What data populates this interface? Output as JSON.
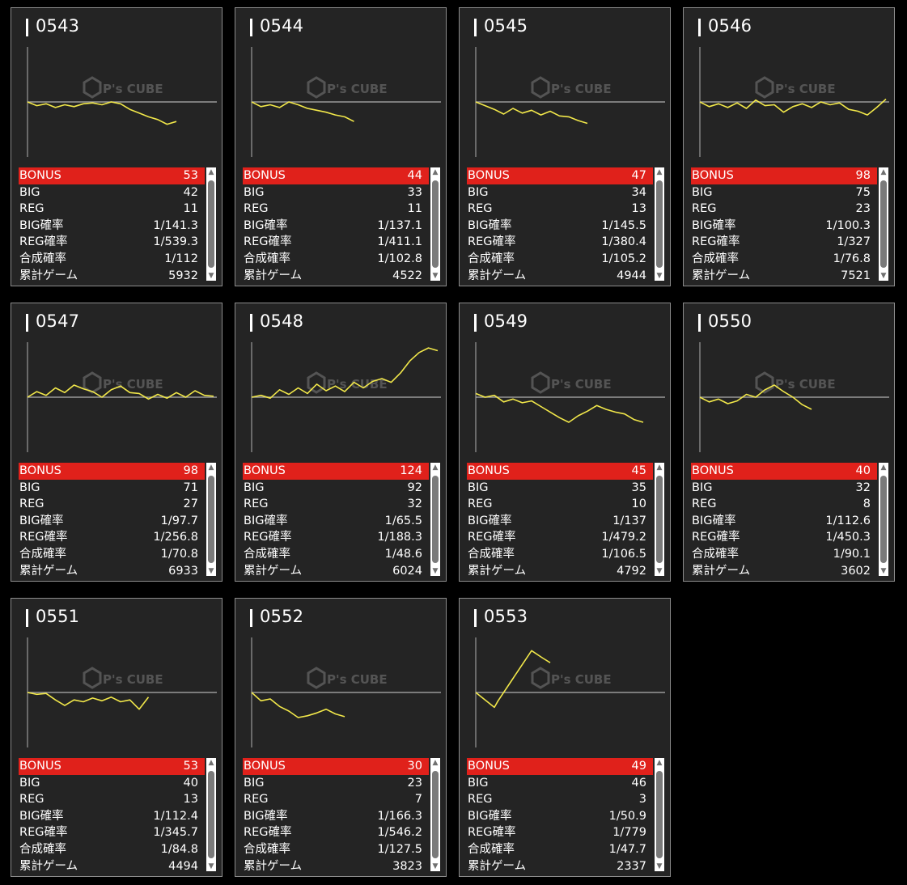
{
  "labels": {
    "bonus": "BONUS",
    "big": "BIG",
    "reg": "REG",
    "big_rate": "BIG確率",
    "reg_rate": "REG確率",
    "combined_rate": "合成確率",
    "total_games": "累計ゲーム"
  },
  "watermark": {
    "brand": "P's CUBE"
  },
  "colors": {
    "background": "#000000",
    "card": "#242424",
    "card_border": "#8c8c8c",
    "bonus_row": "#e0211b",
    "graph_line": "#f2e84a",
    "zero_line": "#9a9a9a",
    "axis": "#b0b0b0"
  },
  "scroll_icons": {
    "up": "triangle-up-icon",
    "down": "triangle-down-icon"
  },
  "machines": [
    {
      "no": "0543",
      "bonus": "53",
      "big": "42",
      "reg": "11",
      "big_rate": "1/141.3",
      "reg_rate": "1/539.3",
      "combined_rate": "1/112",
      "total_games": "5932",
      "chart_data": {
        "type": "line",
        "x": [
          0,
          5,
          10,
          15,
          20,
          25,
          30,
          35,
          40,
          45,
          50,
          55,
          60,
          65,
          70,
          75,
          80
        ],
        "y": [
          0,
          -4,
          -2,
          -6,
          -3,
          -5,
          -2,
          -1,
          -3,
          0,
          -2,
          -8,
          -12,
          -16,
          -19,
          -24,
          -21
        ]
      }
    },
    {
      "no": "0544",
      "bonus": "44",
      "big": "33",
      "reg": "11",
      "big_rate": "1/137.1",
      "reg_rate": "1/411.1",
      "combined_rate": "1/102.8",
      "total_games": "4522",
      "chart_data": {
        "type": "line",
        "x": [
          0,
          5,
          10,
          15,
          20,
          25,
          30,
          35,
          40,
          45,
          50,
          55
        ],
        "y": [
          0,
          -5,
          -3,
          -6,
          0,
          -3,
          -7,
          -9,
          -11,
          -14,
          -16,
          -21
        ]
      }
    },
    {
      "no": "0545",
      "bonus": "47",
      "big": "34",
      "reg": "13",
      "big_rate": "1/145.5",
      "reg_rate": "1/380.4",
      "combined_rate": "1/105.2",
      "total_games": "4944",
      "chart_data": {
        "type": "line",
        "x": [
          0,
          5,
          10,
          15,
          20,
          25,
          30,
          35,
          40,
          45,
          50,
          55,
          60
        ],
        "y": [
          0,
          -4,
          -8,
          -13,
          -7,
          -12,
          -9,
          -14,
          -10,
          -15,
          -16,
          -20,
          -23
        ]
      }
    },
    {
      "no": "0546",
      "bonus": "98",
      "big": "75",
      "reg": "23",
      "big_rate": "1/100.3",
      "reg_rate": "1/327",
      "combined_rate": "1/76.8",
      "total_games": "7521",
      "chart_data": {
        "type": "line",
        "x": [
          0,
          5,
          10,
          15,
          20,
          25,
          30,
          35,
          40,
          45,
          50,
          55,
          60,
          65,
          70,
          75,
          80,
          85,
          90,
          95,
          100
        ],
        "y": [
          0,
          -5,
          -2,
          -6,
          -1,
          -7,
          2,
          -4,
          -3,
          -11,
          -5,
          -2,
          -6,
          0,
          -3,
          -1,
          -8,
          -10,
          -14,
          -6,
          3
        ]
      }
    },
    {
      "no": "0547",
      "bonus": "98",
      "big": "71",
      "reg": "27",
      "big_rate": "1/97.7",
      "reg_rate": "1/256.8",
      "combined_rate": "1/70.8",
      "total_games": "6933",
      "chart_data": {
        "type": "line",
        "x": [
          0,
          5,
          10,
          15,
          20,
          25,
          30,
          35,
          40,
          45,
          50,
          55,
          60,
          65,
          70,
          75,
          80,
          85,
          90,
          95,
          100
        ],
        "y": [
          0,
          6,
          2,
          10,
          5,
          13,
          9,
          6,
          0,
          8,
          12,
          5,
          4,
          -2,
          3,
          -1,
          5,
          0,
          7,
          2,
          1
        ]
      }
    },
    {
      "no": "0548",
      "bonus": "124",
      "big": "92",
      "reg": "32",
      "big_rate": "1/65.5",
      "reg_rate": "1/188.3",
      "combined_rate": "1/48.6",
      "total_games": "6024",
      "chart_data": {
        "type": "line",
        "x": [
          0,
          5,
          10,
          15,
          20,
          25,
          30,
          35,
          40,
          45,
          50,
          55,
          60,
          65,
          70,
          75,
          80,
          85,
          90,
          95,
          100
        ],
        "y": [
          0,
          2,
          -1,
          8,
          3,
          10,
          4,
          14,
          7,
          12,
          6,
          16,
          10,
          17,
          20,
          16,
          26,
          39,
          48,
          53,
          50
        ]
      }
    },
    {
      "no": "0549",
      "bonus": "45",
      "big": "35",
      "reg": "10",
      "big_rate": "1/137",
      "reg_rate": "1/479.2",
      "combined_rate": "1/106.5",
      "total_games": "4792",
      "chart_data": {
        "type": "line",
        "x": [
          0,
          5,
          10,
          15,
          20,
          25,
          30,
          35,
          40,
          45,
          50,
          55,
          60,
          65,
          70,
          75,
          80,
          85,
          90
        ],
        "y": [
          4,
          0,
          2,
          -5,
          -2,
          -6,
          -4,
          -10,
          -16,
          -22,
          -27,
          -20,
          -15,
          -9,
          -13,
          -16,
          -18,
          -24,
          -27
        ]
      }
    },
    {
      "no": "0550",
      "bonus": "40",
      "big": "32",
      "reg": "8",
      "big_rate": "1/112.6",
      "reg_rate": "1/450.3",
      "combined_rate": "1/90.1",
      "total_games": "3602",
      "chart_data": {
        "type": "line",
        "x": [
          0,
          5,
          10,
          15,
          20,
          25,
          30,
          35,
          40,
          45,
          50,
          55,
          60
        ],
        "y": [
          0,
          -5,
          -2,
          -7,
          -4,
          3,
          0,
          8,
          13,
          6,
          0,
          -8,
          -13
        ]
      }
    },
    {
      "no": "0551",
      "bonus": "53",
      "big": "40",
      "reg": "13",
      "big_rate": "1/112.4",
      "reg_rate": "1/345.7",
      "combined_rate": "1/84.8",
      "total_games": "4494",
      "chart_data": {
        "type": "line",
        "x": [
          0,
          5,
          10,
          15,
          20,
          25,
          30,
          35,
          40,
          45,
          50,
          55,
          60,
          65
        ],
        "y": [
          0,
          -2,
          -1,
          -8,
          -14,
          -8,
          -10,
          -6,
          -9,
          -5,
          -10,
          -8,
          -18,
          -5
        ]
      }
    },
    {
      "no": "0552",
      "bonus": "30",
      "big": "23",
      "reg": "7",
      "big_rate": "1/166.3",
      "reg_rate": "1/546.2",
      "combined_rate": "1/127.5",
      "total_games": "3823",
      "chart_data": {
        "type": "line",
        "x": [
          0,
          5,
          10,
          15,
          20,
          25,
          30,
          35,
          40,
          45,
          50
        ],
        "y": [
          0,
          -9,
          -7,
          -15,
          -20,
          -27,
          -25,
          -22,
          -18,
          -23,
          -26
        ]
      }
    },
    {
      "no": "0553",
      "bonus": "49",
      "big": "46",
      "reg": "3",
      "big_rate": "1/50.9",
      "reg_rate": "1/779",
      "combined_rate": "1/47.7",
      "total_games": "2337",
      "chart_data": {
        "type": "line",
        "x": [
          0,
          10,
          12,
          30,
          36,
          40
        ],
        "y": [
          0,
          -16,
          -9,
          45,
          37,
          32
        ]
      }
    }
  ]
}
